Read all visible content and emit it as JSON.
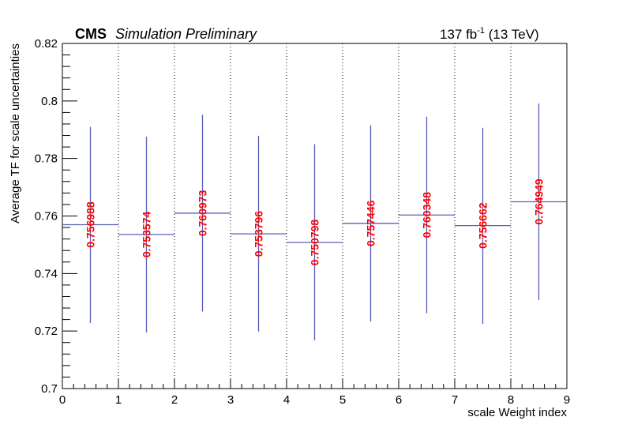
{
  "header": {
    "experiment": "CMS",
    "status": "Simulation Preliminary",
    "lumi_value": "137 fb",
    "lumi_exponent": "-1",
    "lumi_energy": " (13 TeV)"
  },
  "chart_data": {
    "type": "bar",
    "xlabel": "scale Weight index",
    "ylabel": "Average TF for scale uncertainties",
    "xlim": [
      0,
      9
    ],
    "ylim": [
      0.7,
      0.82
    ],
    "x_ticks": [
      "0",
      "1",
      "2",
      "3",
      "4",
      "5",
      "6",
      "7",
      "8",
      "9"
    ],
    "y_ticks": [
      "0.7",
      "0.72",
      "0.74",
      "0.76",
      "0.78",
      "0.8",
      "0.82"
    ],
    "y_tick_values": [
      0.7,
      0.72,
      0.74,
      0.76,
      0.78,
      0.8,
      0.82
    ],
    "grid": "vertical dotted at integer bin edges",
    "series": [
      {
        "name": "Average TF",
        "bins": [
          {
            "x": 0.5,
            "value": 0.756988,
            "label": "0.756988",
            "err_low": 0.7228,
            "err_high": 0.791
          },
          {
            "x": 1.5,
            "value": 0.753574,
            "label": "0.753574",
            "err_low": 0.7195,
            "err_high": 0.7876
          },
          {
            "x": 2.5,
            "value": 0.760973,
            "label": "0.760973",
            "err_low": 0.7268,
            "err_high": 0.7952
          },
          {
            "x": 3.5,
            "value": 0.753796,
            "label": "0.753796",
            "err_low": 0.7198,
            "err_high": 0.7879
          },
          {
            "x": 4.5,
            "value": 0.750798,
            "label": "0.750798",
            "err_low": 0.7168,
            "err_high": 0.785
          },
          {
            "x": 5.5,
            "value": 0.757446,
            "label": "0.757446",
            "err_low": 0.7233,
            "err_high": 0.7915
          },
          {
            "x": 6.5,
            "value": 0.760348,
            "label": "0.760348",
            "err_low": 0.7262,
            "err_high": 0.7945
          },
          {
            "x": 7.5,
            "value": 0.756662,
            "label": "0.756662",
            "err_low": 0.7225,
            "err_high": 0.7907
          },
          {
            "x": 8.5,
            "value": 0.764949,
            "label": "0.764949",
            "err_low": 0.7308,
            "err_high": 0.7991
          }
        ]
      }
    ]
  },
  "colors": {
    "bin_line": "#5a5fb8",
    "label": "#ff0000",
    "axis": "#000000"
  }
}
